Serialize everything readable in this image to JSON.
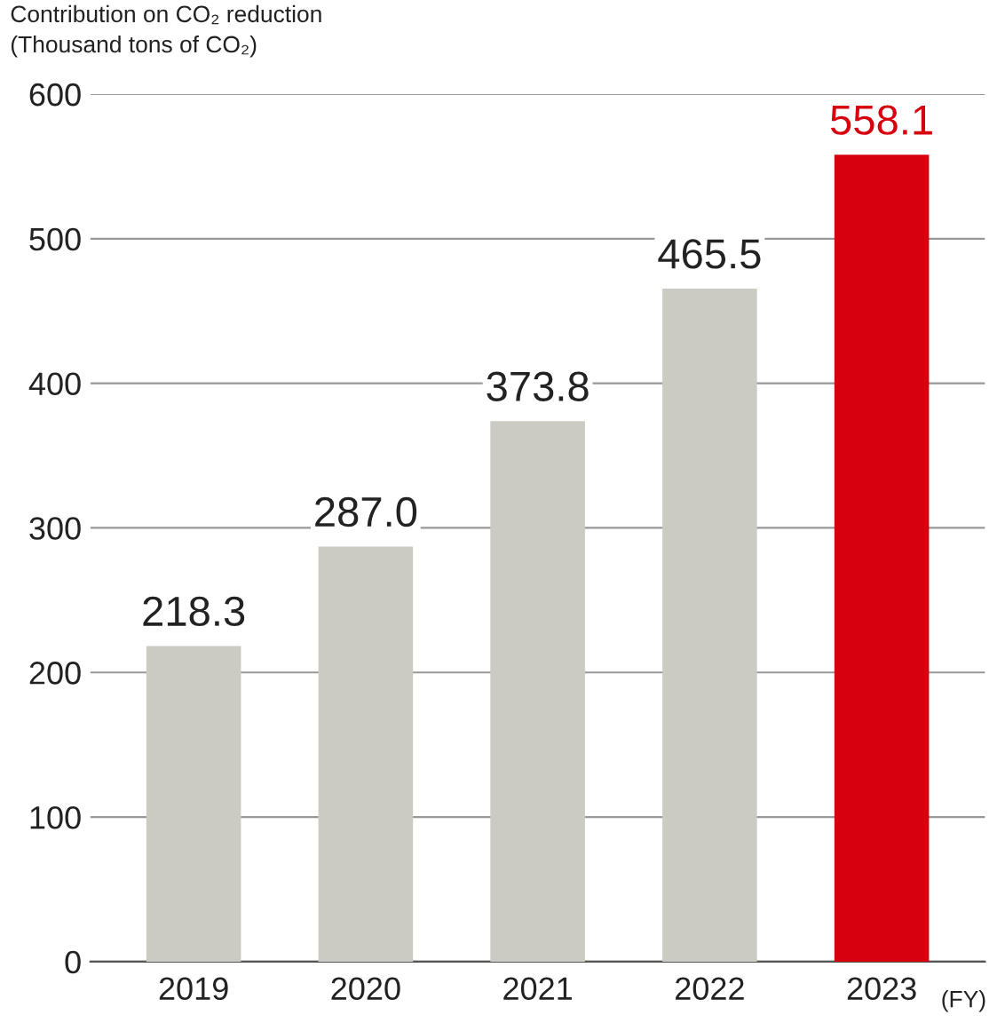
{
  "chart_data": {
    "type": "bar",
    "ylabel": "Contribution on CO₂ reduction\n(Thousand tons of CO₂)",
    "categories": [
      "2019",
      "2020",
      "2021",
      "2022",
      "2023"
    ],
    "values": [
      218.3,
      287.0,
      373.8,
      465.5,
      558.1
    ],
    "colors": [
      "#cbcbc3",
      "#cbcbc3",
      "#cbcbc3",
      "#cbcbc3",
      "#d7000f"
    ],
    "ylim": [
      0,
      600
    ],
    "yticks": [
      0,
      100,
      200,
      300,
      400,
      500,
      600
    ],
    "value_labels": [
      "218.3",
      "287.0",
      "373.8",
      "465.5",
      "558.1"
    ],
    "grid": "y",
    "annotations": [
      "(FY)"
    ]
  }
}
